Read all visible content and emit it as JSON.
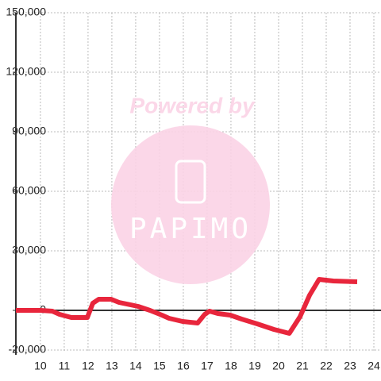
{
  "chart_data": {
    "type": "line",
    "x": [
      8.97,
      10,
      10.5,
      10.8,
      11.3,
      11.97,
      12.2,
      12.45,
      12.97,
      13.3,
      14.1,
      14.6,
      15.1,
      15.4,
      15.97,
      16.6,
      16.9,
      17.1,
      17.45,
      17.97,
      18.45,
      19.1,
      19.8,
      20.45,
      20.9,
      21.3,
      21.7,
      22.3,
      23.3
    ],
    "series": [
      {
        "color": "#e8263c",
        "values": [
          0,
          0,
          -400,
          -2000,
          -3600,
          -3600,
          3600,
          5600,
          5600,
          4000,
          2000,
          0,
          -2400,
          -4000,
          -5600,
          -6400,
          -2000,
          -400,
          -1600,
          -2400,
          -4400,
          -6800,
          -9600,
          -11600,
          -3200,
          7600,
          15600,
          14800,
          14400
        ]
      }
    ],
    "xlim": [
      8.97,
      24.3
    ],
    "xticks": [
      10,
      11,
      12,
      13,
      14,
      15,
      16,
      17,
      18,
      19,
      20,
      21,
      22,
      23,
      24
    ],
    "ylim": [
      -20800,
      150000
    ],
    "yticks": [
      {
        "value": -20000,
        "label": "-20,000"
      },
      0,
      {
        "value": 30000,
        "label": "30,000"
      },
      {
        "value": 60000,
        "label": "60,000"
      },
      {
        "value": 90000,
        "label": "90,000"
      },
      {
        "value": 120000,
        "label": "120,000"
      },
      {
        "value": 150000,
        "label": "150,000"
      }
    ],
    "grid": true,
    "watermark": {
      "text": "Powered by",
      "logo": "PAPIMO"
    }
  }
}
